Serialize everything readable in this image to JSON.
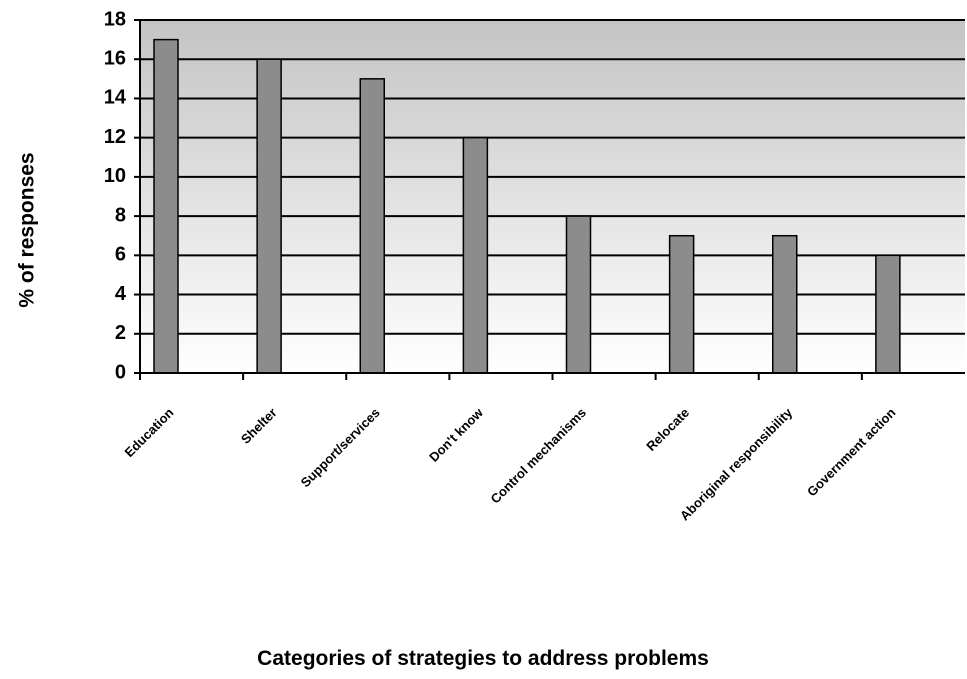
{
  "chart_data": {
    "type": "bar",
    "x_label": "Categories of strategies to address problems",
    "y_label": "% of responses",
    "categories": [
      "Education",
      "Shelter",
      "Support/services",
      "Don't know",
      "Control mechanisms",
      "Relocate",
      "Aboriginal responsibility",
      "Government action"
    ],
    "values": [
      17,
      16,
      15,
      12,
      8,
      7,
      7,
      6
    ],
    "color": "#8c8c8c",
    "ylim": [
      0,
      18
    ],
    "yticks": [
      0,
      2,
      4,
      6,
      8,
      10,
      12,
      14,
      16,
      18
    ],
    "grid": true
  }
}
